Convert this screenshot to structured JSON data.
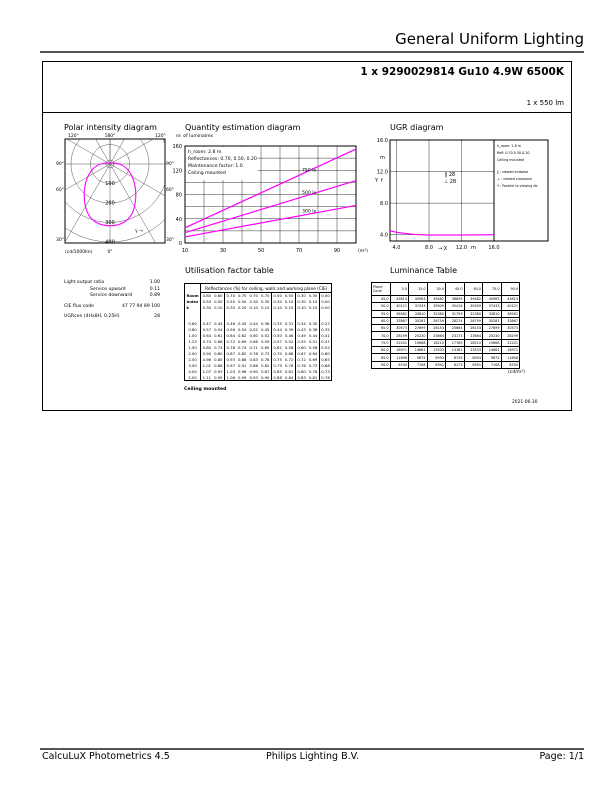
{
  "header": {
    "title": "General Uniform Lighting"
  },
  "product": {
    "name": "1 x 9290029814 Gu10 4.9W 6500K",
    "flux": "1 x 550 lm"
  },
  "polar": {
    "title": "Polar intensity diagram",
    "unit": "(cd/1000lm)",
    "angle_labels": [
      "120°",
      "180°",
      "120°",
      "90°",
      "90°",
      "60°",
      "60°",
      "30°",
      "30°",
      "0°"
    ],
    "radial_labels": [
      "100",
      "200",
      "300",
      "400"
    ],
    "curve_color": "#ff00ff",
    "gamma_label": "γ"
  },
  "quantity": {
    "title": "Quantity estimation diagram",
    "ylabel": "nr. of luminaires",
    "xunit": "(m²)",
    "info": [
      "h_room: 2.8 m",
      "Reflectances: 0.70, 0.50, 0.20",
      "Maintenance factor: 1.0",
      "Ceiling mounted"
    ],
    "chart_data": {
      "type": "line",
      "x": [
        10,
        100
      ],
      "xticks": [
        "10",
        "30",
        "50",
        "70",
        "90"
      ],
      "yticks": [
        "0",
        "40",
        "80",
        "120",
        "160"
      ],
      "xlim": [
        10,
        100
      ],
      "ylim": [
        0,
        160
      ],
      "grid": true,
      "series": [
        {
          "name": "750 lx",
          "values": [
            25,
            155
          ]
        },
        {
          "name": "500 lx",
          "values": [
            17,
            103
          ]
        },
        {
          "name": "300 lx",
          "values": [
            10,
            62
          ]
        }
      ],
      "color": "#ff00ff"
    }
  },
  "ugr": {
    "title": "UGR diagram",
    "ylabel": "Y",
    "yunit": "m",
    "xlabel": "X",
    "xunit": "m",
    "yticks": [
      "4.0",
      "8.0",
      "12.0",
      "16.0"
    ],
    "xticks": [
      "4.0",
      "8.0",
      "12.0",
      "16.0"
    ],
    "values": [
      "‖ 28",
      "⊥ 28"
    ],
    "legend": [
      "h_room: 2.8 m",
      "Refl: 0.70 0.50 0.20",
      "Ceiling mounted",
      "‖ : viewed endwise",
      "⊥ : viewed crosswise",
      "Y : Parallel to viewing dir."
    ],
    "chart_data": {
      "type": "line",
      "x": [
        3.2,
        4,
        6,
        8,
        12,
        16
      ],
      "y": [
        4.5,
        4.3,
        4.05,
        3.95,
        3.95,
        4.0
      ],
      "xlim": [
        3.2,
        16
      ],
      "ylim": [
        3.2,
        16
      ]
    }
  },
  "props": {
    "items": [
      [
        "Light output ratio",
        "1.00"
      ],
      [
        "Service upward",
        "0.11"
      ],
      [
        "Service downward",
        "0.89"
      ],
      [
        "CIE flux code",
        "47 77 94 89 100"
      ],
      [
        "UGRcen (4Hx8H, 0.25H)",
        "28"
      ]
    ]
  },
  "utilisation": {
    "title": "Utilisation factor table",
    "header": "Reflectances (%) for ceiling, walls and working plane (CIE)",
    "room_index_label": [
      "Room",
      "Index",
      "k"
    ],
    "refl": [
      [
        "0.80",
        "0.80",
        "0.70",
        "0.70",
        "0.70",
        "0.70",
        "0.50",
        "0.50",
        "0.30",
        "0.30",
        "0.00"
      ],
      [
        "0.50",
        "0.50",
        "0.50",
        "0.50",
        "0.30",
        "0.30",
        "0.30",
        "0.10",
        "0.30",
        "0.10",
        "0.00"
      ],
      [
        "0.30",
        "0.10",
        "0.30",
        "0.20",
        "0.10",
        "0.10",
        "0.10",
        "0.10",
        "0.10",
        "0.10",
        "0.00"
      ]
    ],
    "rows": [
      [
        "0.60",
        "0.47",
        "0.45",
        "0.46",
        "0.45",
        "0.44",
        "0.36",
        "0.35",
        "0.31",
        "0.34",
        "0.30",
        "0.27"
      ],
      [
        "0.80",
        "0.57",
        "0.54",
        "0.56",
        "0.54",
        "0.52",
        "0.45",
        "0.44",
        "0.39",
        "0.43",
        "0.38",
        "0.35"
      ],
      [
        "1.00",
        "0.64",
        "0.61",
        "0.64",
        "0.62",
        "0.60",
        "0.52",
        "0.50",
        "0.46",
        "0.49",
        "0.44",
        "0.41"
      ],
      [
        "1.25",
        "0.74",
        "0.68",
        "0.72",
        "0.69",
        "0.66",
        "0.59",
        "0.57",
        "0.52",
        "0.55",
        "0.51",
        "0.47"
      ],
      [
        "1.50",
        "0.80",
        "0.73",
        "0.78",
        "0.74",
        "0.71",
        "0.65",
        "0.62",
        "0.58",
        "0.60",
        "0.56",
        "0.52"
      ],
      [
        "2.00",
        "0.90",
        "0.80",
        "0.87",
        "0.82",
        "0.78",
        "0.73",
        "0.70",
        "0.66",
        "0.67",
        "0.64",
        "0.60"
      ],
      [
        "2.50",
        "0.96",
        "0.85",
        "0.93",
        "0.88",
        "0.83",
        "0.78",
        "0.75",
        "0.72",
        "0.72",
        "0.69",
        "0.65"
      ],
      [
        "3.00",
        "1.01",
        "0.88",
        "0.97",
        "0.91",
        "0.86",
        "0.82",
        "0.79",
        "0.76",
        "0.76",
        "0.73",
        "0.68"
      ],
      [
        "4.00",
        "1.07",
        "0.93",
        "1.03",
        "0.96",
        "0.90",
        "0.87",
        "0.85",
        "0.81",
        "0.80",
        "0.78",
        "0.73"
      ],
      [
        "5.00",
        "1.11",
        "0.95",
        "1.06",
        "0.99",
        "0.93",
        "0.90",
        "0.88",
        "0.84",
        "0.83",
        "0.81",
        "0.76"
      ]
    ],
    "footer": "Ceiling mounted"
  },
  "luminance": {
    "title": "Luminance Table",
    "header": [
      "Plane\nCone",
      "0.0",
      "15.0",
      "30.0",
      "45.0",
      "60.0",
      "75.0",
      "90.0"
    ],
    "unit": "(cd/m²)",
    "rows": [
      [
        "45.0",
        "43614",
        "40983",
        "39482",
        "38899",
        "39482",
        "40983",
        "43614"
      ],
      [
        "50.0",
        "40121",
        "37433",
        "35909",
        "35416",
        "35909",
        "37433",
        "40121"
      ],
      [
        "55.0",
        "36581",
        "33810",
        "32380",
        "31793",
        "32380",
        "33810",
        "36581"
      ],
      [
        "60.0",
        "33867",
        "30281",
        "28759",
        "28274",
        "28759",
        "30281",
        "33867"
      ],
      [
        "65.0",
        "30573",
        "27699",
        "26153",
        "25664",
        "26153",
        "27699",
        "30573"
      ],
      [
        "70.0",
        "28199",
        "25230",
        "23664",
        "23173",
        "23664",
        "25230",
        "28199"
      ],
      [
        "75.0",
        "22201",
        "19668",
        "18210",
        "17789",
        "18210",
        "19668",
        "22201"
      ],
      [
        "80.0",
        "16971",
        "14681",
        "13533",
        "13181",
        "13533",
        "14681",
        "16971"
      ],
      [
        "85.0",
        "11696",
        "9875",
        "8993",
        "8729",
        "8993",
        "9875",
        "11696"
      ],
      [
        "90.0",
        "8700",
        "7108",
        "6391",
        "6173",
        "6391",
        "7108",
        "8700"
      ]
    ]
  },
  "date": "2021-06-30",
  "footer": {
    "left": "CalcuLuX Photometrics 4.5",
    "center": "Philips Lighting B.V.",
    "right": "Page: 1/1"
  }
}
